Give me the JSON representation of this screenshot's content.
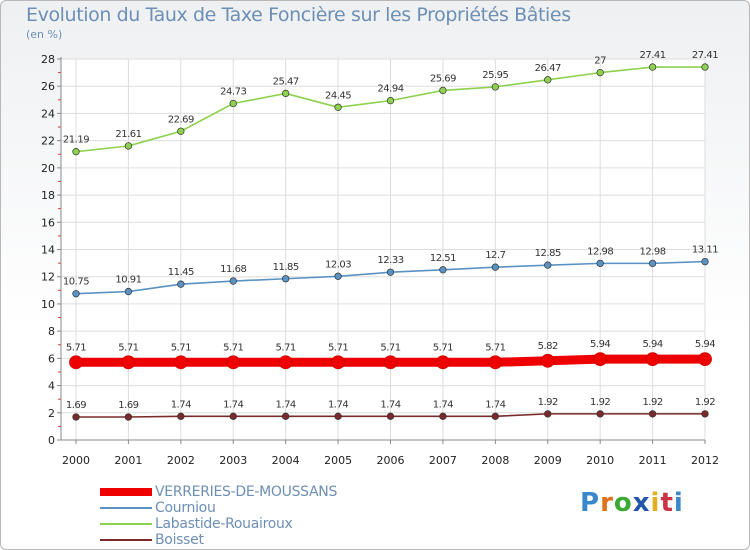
{
  "title": "Evolution du Taux de Taxe Foncière sur les Propriétés Bâties",
  "unit": "(en %)",
  "brand": {
    "text": "Proxiti",
    "colors": [
      "#3a88cc",
      "#e0701a",
      "#3aaa35",
      "#2255aa",
      "#e0b020",
      "#cc3344",
      "#3a88cc"
    ]
  },
  "chart_data": {
    "type": "line",
    "title": "Evolution du Taux de Taxe Foncière sur les Propriétés Bâties",
    "ylabel": "(en %)",
    "xlabel": "",
    "x": [
      "2000",
      "2001",
      "2002",
      "2003",
      "2004",
      "2005",
      "2006",
      "2007",
      "2008",
      "2009",
      "2010",
      "2011",
      "2012"
    ],
    "ylim": [
      0,
      28
    ],
    "yticks": [
      0,
      2,
      4,
      6,
      8,
      10,
      12,
      14,
      16,
      18,
      20,
      22,
      24,
      26,
      28
    ],
    "grid": true,
    "legend_position": "bottom-left",
    "series": [
      {
        "name": "VERRERIES-DE-MOUSSANS",
        "color": "#ee0000",
        "values": [
          5.71,
          5.71,
          5.71,
          5.71,
          5.71,
          5.71,
          5.71,
          5.71,
          5.71,
          5.82,
          5.94,
          5.94,
          5.94
        ],
        "labels": [
          "5.71",
          "5.71",
          "5.71",
          "5.71",
          "5.71",
          "5.71",
          "5.71",
          "5.71",
          "5.71",
          "5.82",
          "5.94",
          "5.94",
          "5.94"
        ]
      },
      {
        "name": "Courniou",
        "color": "#5b92c4",
        "values": [
          10.75,
          10.91,
          11.45,
          11.68,
          11.85,
          12.03,
          12.33,
          12.51,
          12.7,
          12.85,
          12.98,
          12.98,
          13.11
        ],
        "labels": [
          "10.75",
          "10.91",
          "11.45",
          "11.68",
          "11.85",
          "12.03",
          "12.33",
          "12.51",
          "12.7",
          "12.85",
          "12.98",
          "12.98",
          "13.11"
        ]
      },
      {
        "name": "Labastide-Rouairoux",
        "color": "#8ed14e",
        "values": [
          21.19,
          21.61,
          22.69,
          24.73,
          25.47,
          24.45,
          24.94,
          25.69,
          25.95,
          26.47,
          27,
          27.41,
          27.41
        ],
        "labels": [
          "21.19",
          "21.61",
          "22.69",
          "24.73",
          "25.47",
          "24.45",
          "24.94",
          "25.69",
          "25.95",
          "26.47",
          "27",
          "27.41",
          "27.41"
        ]
      },
      {
        "name": "Boisset",
        "color": "#7a2a2a",
        "values": [
          1.69,
          1.69,
          1.74,
          1.74,
          1.74,
          1.74,
          1.74,
          1.74,
          1.74,
          1.92,
          1.92,
          1.92,
          1.92
        ],
        "labels": [
          "1.69",
          "1.69",
          "1.74",
          "1.74",
          "1.74",
          "1.74",
          "1.74",
          "1.74",
          "1.74",
          "1.92",
          "1.92",
          "1.92",
          "1.92"
        ]
      }
    ]
  }
}
